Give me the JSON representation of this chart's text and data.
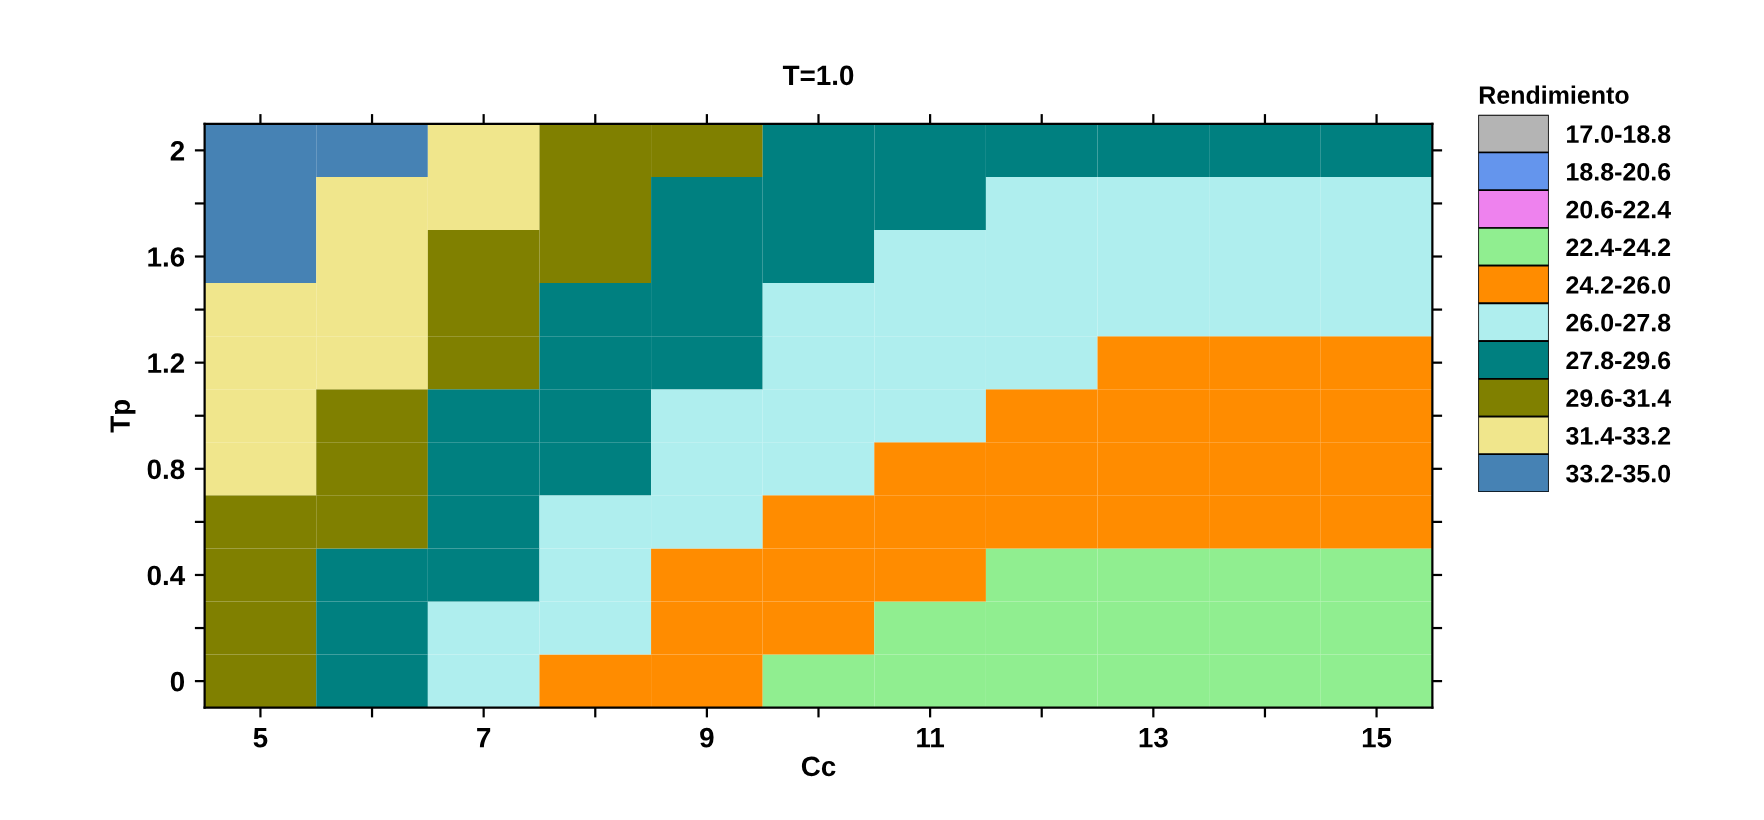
{
  "chart_data": {
    "type": "heatmap",
    "title": "T=1.0",
    "xlabel": "Cc",
    "ylabel": "Tp",
    "clabel": "Rendimiento",
    "categories": [
      "5",
      null,
      "7",
      null,
      "9",
      null,
      "11",
      null,
      "13",
      null,
      "15"
    ],
    "y_categories": [
      "2",
      null,
      "1.6",
      null,
      "1.2",
      null,
      "0.8",
      null,
      "0.4",
      null,
      "0"
    ],
    "cells": [
      [
        34.6,
        33.3,
        32.5,
        30.9,
        30.0,
        29.2,
        28.8,
        28.3,
        28.0,
        27.9,
        28.0
      ],
      [
        34.1,
        32.9,
        31.9,
        30.4,
        29.5,
        28.7,
        28.2,
        27.7,
        27.5,
        27.4,
        27.5
      ],
      [
        33.6,
        32.4,
        31.3,
        29.9,
        28.9,
        28.2,
        27.7,
        27.2,
        27.0,
        26.9,
        27.0
      ],
      [
        33.1,
        32.0,
        30.8,
        29.4,
        28.4,
        27.7,
        27.1,
        26.7,
        26.5,
        26.4,
        26.5
      ],
      [
        32.7,
        31.6,
        30.2,
        28.8,
        27.9,
        27.2,
        26.6,
        26.2,
        25.9,
        25.9,
        25.9
      ],
      [
        32.2,
        31.1,
        29.5,
        28.3,
        27.3,
        26.6,
        26.0,
        25.7,
        25.4,
        25.4,
        25.4
      ],
      [
        31.7,
        30.5,
        29.0,
        27.8,
        26.8,
        26.1,
        25.5,
        25.2,
        24.9,
        24.9,
        24.9
      ],
      [
        31.2,
        29.9,
        28.5,
        27.3,
        26.3,
        25.6,
        25.0,
        24.7,
        24.4,
        24.3,
        24.4
      ],
      [
        30.7,
        29.3,
        28.0,
        26.8,
        25.7,
        25.1,
        24.5,
        24.1,
        23.9,
        23.8,
        23.9
      ],
      [
        30.1,
        28.7,
        27.4,
        26.3,
        25.2,
        24.6,
        24.0,
        23.6,
        23.4,
        23.3,
        23.4
      ],
      [
        29.6,
        28.1,
        26.9,
        25.8,
        24.7,
        24.1,
        23.5,
        23.1,
        22.9,
        22.8,
        22.9
      ]
    ],
    "clim": [
      17.0,
      35.0
    ],
    "cticks": [
      {
        "value": 17.9,
        "label": "17.0-18.8"
      },
      {
        "value": 19.7,
        "label": "18.8-20.6"
      },
      {
        "value": 21.5,
        "label": "20.6-22.4"
      },
      {
        "value": 23.3,
        "label": "22.4-24.2"
      },
      {
        "value": 25.1,
        "label": "24.2-26.0"
      },
      {
        "value": 26.9,
        "label": "26.0-27.8"
      },
      {
        "value": 28.7,
        "label": "27.8-29.6"
      },
      {
        "value": 30.5,
        "label": "29.6-31.4"
      },
      {
        "value": 32.3,
        "label": "31.4-33.2"
      },
      {
        "value": 34.1,
        "label": "33.2-35.0"
      }
    ],
    "colors": [
      "#b4b4b4",
      "#6495ed",
      "#ee82ee",
      "#90ee90",
      "#ff8c00",
      "#afeeee",
      "#008080",
      "#808000",
      "#f0e68c",
      "#4682b4"
    ]
  }
}
